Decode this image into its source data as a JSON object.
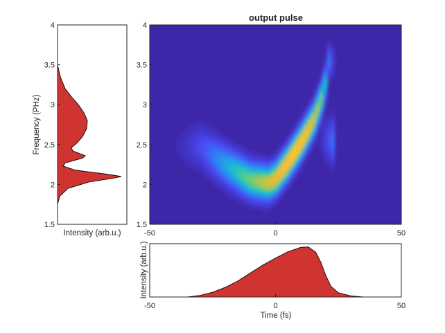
{
  "chart_data": [
    {
      "type": "heatmap",
      "title": "output pulse",
      "xlim": [
        -50,
        50
      ],
      "ylim": [
        1.5,
        4
      ],
      "x_ticks": [
        "-50",
        "0",
        "50"
      ],
      "y_ticks": [
        "1.5",
        "2",
        "2.5",
        "3",
        "3.5",
        "4"
      ],
      "colormap": [
        "#3e26a8",
        "#4949f3",
        "#2f83f7",
        "#14b9d7",
        "#51cd8b",
        "#c2c342",
        "#fab92e",
        "#f7db1b"
      ],
      "ridge_path": [
        {
          "t": -30,
          "f": 2.48
        },
        {
          "t": -20,
          "f": 2.25
        },
        {
          "t": -10,
          "f": 2.06
        },
        {
          "t": -3,
          "f": 2.02
        },
        {
          "t": 0,
          "f": 2.07
        },
        {
          "t": 5,
          "f": 2.28
        },
        {
          "t": 10,
          "f": 2.52
        },
        {
          "t": 15,
          "f": 2.8
        },
        {
          "t": 18,
          "f": 3.05
        },
        {
          "t": 20,
          "f": 3.3
        },
        {
          "t": 21,
          "f": 3.55
        }
      ],
      "peak": {
        "t": -1,
        "f": 2.06
      }
    },
    {
      "type": "area",
      "orientation": "vertical",
      "xlabel": "Intensity (arb.u.)",
      "ylabel": "Frequency (PHz)",
      "ylim": [
        1.5,
        4
      ],
      "y_ticks": [
        "1.5",
        "2",
        "2.5",
        "3",
        "3.5",
        "4"
      ],
      "fill_color": "#d03431",
      "points": [
        {
          "f": 1.5,
          "i": 0.0
        },
        {
          "f": 1.75,
          "i": 0.0
        },
        {
          "f": 1.85,
          "i": 0.03
        },
        {
          "f": 1.95,
          "i": 0.15
        },
        {
          "f": 2.03,
          "i": 0.45
        },
        {
          "f": 2.08,
          "i": 0.82
        },
        {
          "f": 2.1,
          "i": 0.92
        },
        {
          "f": 2.13,
          "i": 0.7
        },
        {
          "f": 2.18,
          "i": 0.25
        },
        {
          "f": 2.23,
          "i": 0.08
        },
        {
          "f": 2.27,
          "i": 0.11
        },
        {
          "f": 2.33,
          "i": 0.36
        },
        {
          "f": 2.36,
          "i": 0.4
        },
        {
          "f": 2.42,
          "i": 0.22
        },
        {
          "f": 2.46,
          "i": 0.2
        },
        {
          "f": 2.52,
          "i": 0.28
        },
        {
          "f": 2.6,
          "i": 0.36
        },
        {
          "f": 2.7,
          "i": 0.42
        },
        {
          "f": 2.8,
          "i": 0.43
        },
        {
          "f": 2.9,
          "i": 0.38
        },
        {
          "f": 3.0,
          "i": 0.3
        },
        {
          "f": 3.1,
          "i": 0.2
        },
        {
          "f": 3.2,
          "i": 0.11
        },
        {
          "f": 3.35,
          "i": 0.04
        },
        {
          "f": 3.5,
          "i": 0.0
        },
        {
          "f": 4.0,
          "i": 0.0
        }
      ]
    },
    {
      "type": "area",
      "xlabel": "Time (fs)",
      "ylabel": "Intensity (arb.u.)",
      "xlim": [
        -50,
        50
      ],
      "x_ticks": [
        "-50",
        "0",
        "50"
      ],
      "fill_color": "#d03431",
      "points": [
        {
          "t": -50,
          "i": 0.0
        },
        {
          "t": -35,
          "i": 0.0
        },
        {
          "t": -30,
          "i": 0.03
        },
        {
          "t": -25,
          "i": 0.09
        },
        {
          "t": -20,
          "i": 0.18
        },
        {
          "t": -15,
          "i": 0.3
        },
        {
          "t": -10,
          "i": 0.45
        },
        {
          "t": -5,
          "i": 0.6
        },
        {
          "t": 0,
          "i": 0.73
        },
        {
          "t": 5,
          "i": 0.85
        },
        {
          "t": 10,
          "i": 0.93
        },
        {
          "t": 13,
          "i": 0.94
        },
        {
          "t": 16,
          "i": 0.84
        },
        {
          "t": 18,
          "i": 0.65
        },
        {
          "t": 20,
          "i": 0.4
        },
        {
          "t": 22,
          "i": 0.2
        },
        {
          "t": 25,
          "i": 0.08
        },
        {
          "t": 30,
          "i": 0.02
        },
        {
          "t": 35,
          "i": 0.0
        },
        {
          "t": 50,
          "i": 0.0
        }
      ]
    }
  ]
}
